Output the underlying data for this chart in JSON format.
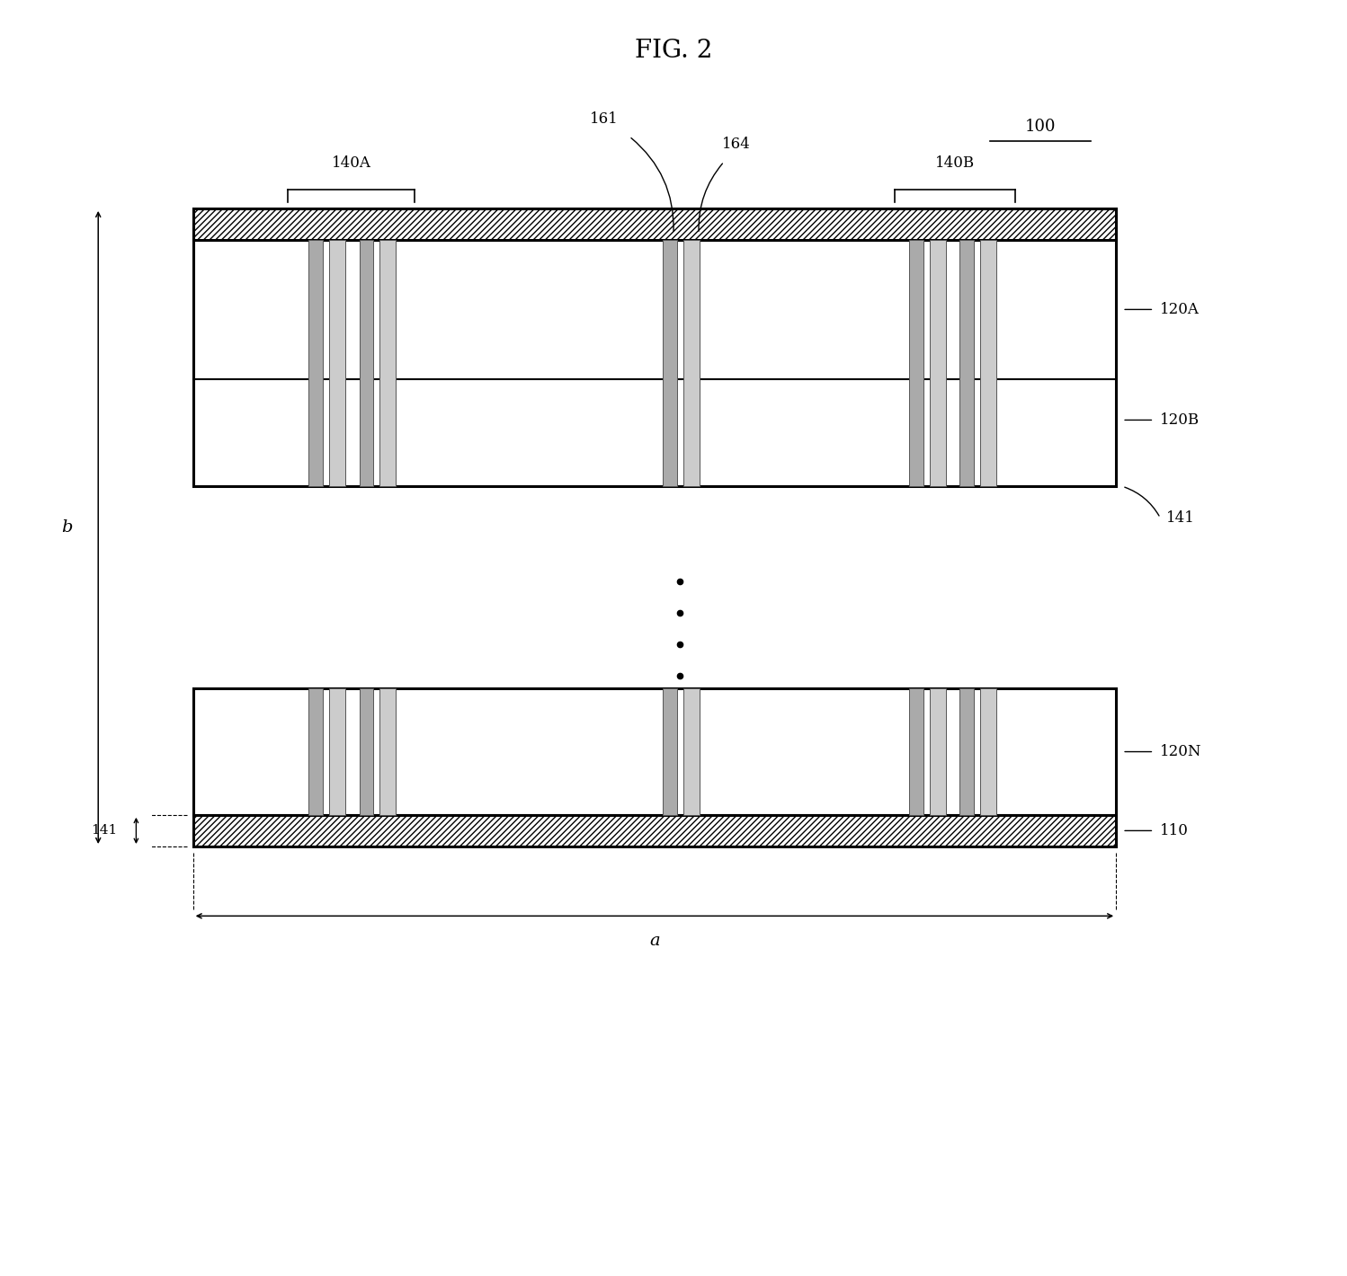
{
  "title": "FIG. 2",
  "label_100": "100",
  "label_120A": "120A",
  "label_120B": "120B",
  "label_120N": "120N",
  "label_110": "110",
  "label_140A": "140A",
  "label_140B": "140B",
  "label_161": "161",
  "label_164": "164",
  "label_141_right": "141",
  "label_141_left": "141",
  "label_a": "a",
  "label_b": "b",
  "bg_color": "#ffffff",
  "line_color": "#000000",
  "fig_width": 14.98,
  "fig_height": 14.2
}
